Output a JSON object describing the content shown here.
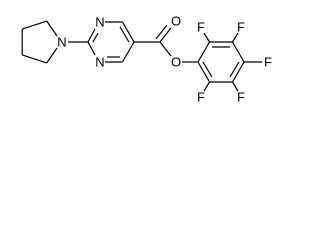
{
  "atoms": [
    {
      "label": "N"
    },
    {
      "label": "N"
    },
    {
      "label": "N"
    },
    {
      "label": "O"
    },
    {
      "label": "O"
    },
    {
      "label": "F"
    },
    {
      "label": "F"
    },
    {
      "label": "F"
    },
    {
      "label": "F"
    },
    {
      "label": "F"
    }
  ]
}
